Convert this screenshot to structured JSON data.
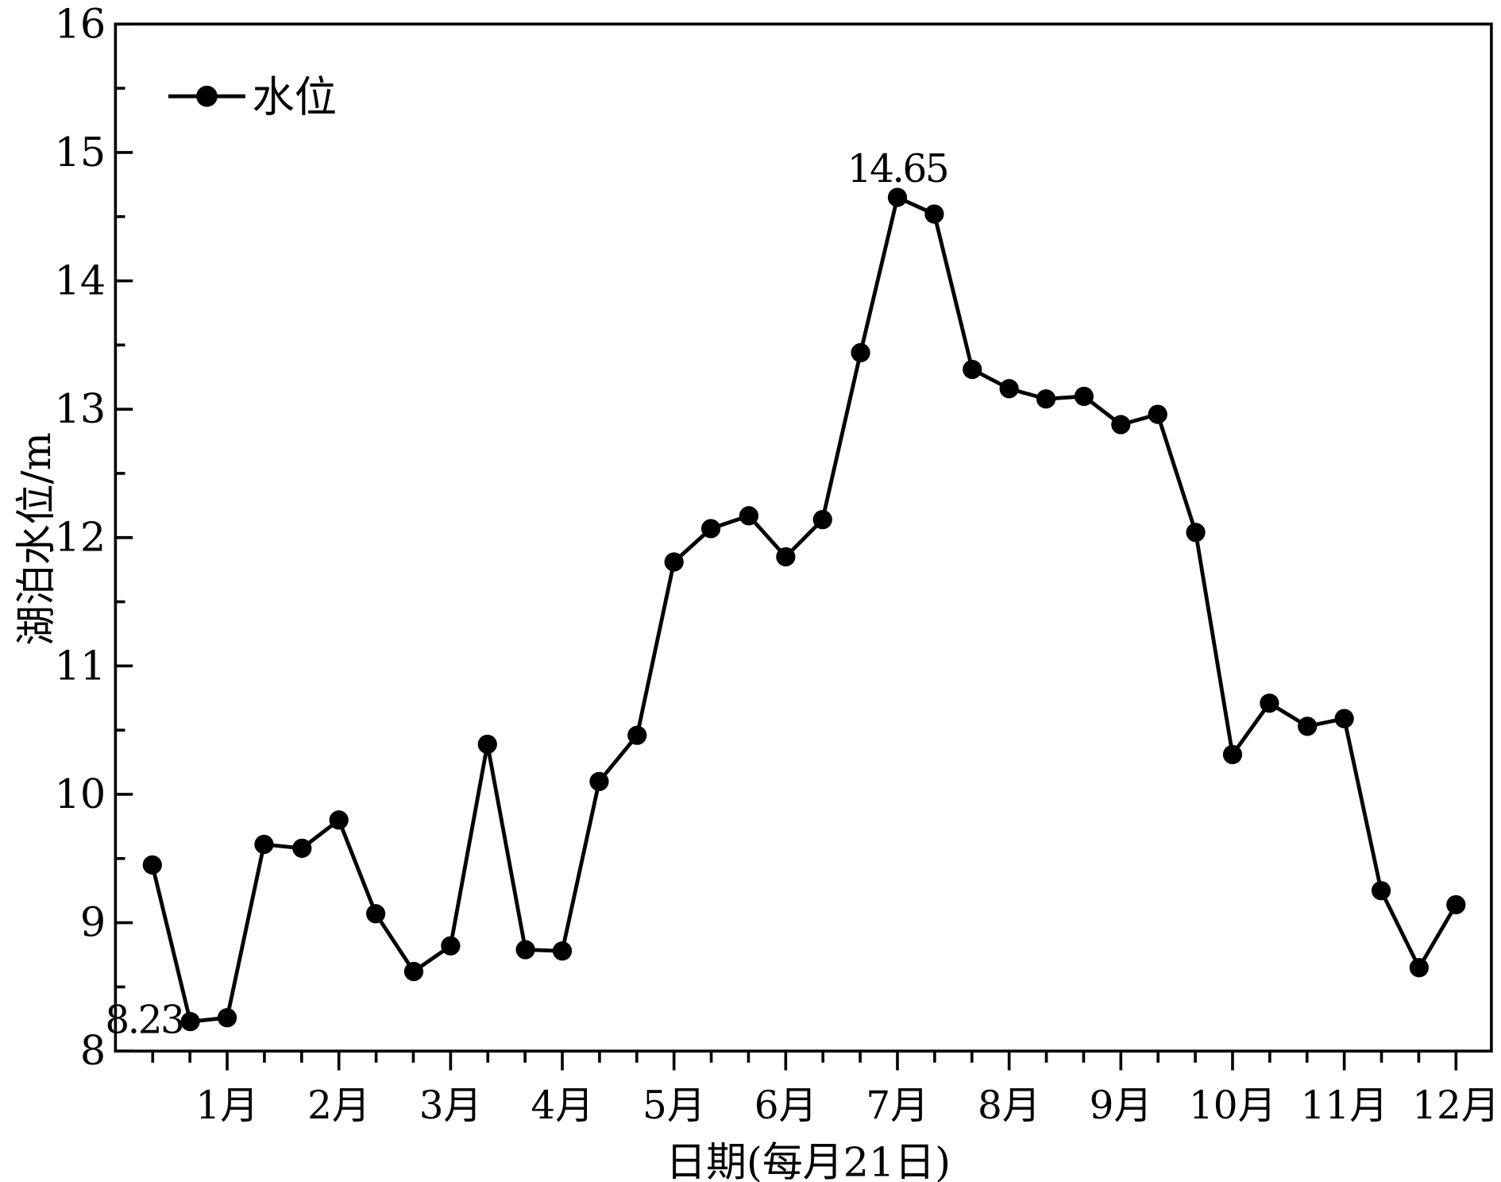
{
  "chart_data": {
    "type": "line",
    "title": "",
    "xlabel": "日期(每月21日)",
    "ylabel": "湖泊水位/m",
    "xlim": [
      0,
      12.3
    ],
    "ylim": [
      8,
      16
    ],
    "yticks": [
      8,
      9,
      10,
      11,
      12,
      13,
      14,
      15,
      16
    ],
    "xticks": [
      1,
      2,
      3,
      4,
      5,
      6,
      7,
      8,
      9,
      10,
      11,
      12
    ],
    "xtick_labels": [
      "1月",
      "2月",
      "3月",
      "4月",
      "5月",
      "6月",
      "7月",
      "8月",
      "9月",
      "10月",
      "11月",
      "12月"
    ],
    "grid": false,
    "legend_position": "top-left",
    "series": [
      {
        "name": "水位",
        "color": "#000000",
        "marker": "circle",
        "x": [
          0.33,
          0.67,
          1,
          1.33,
          1.67,
          2,
          2.33,
          2.67,
          3,
          3.33,
          3.67,
          4,
          4.33,
          4.67,
          5,
          5.33,
          5.67,
          6,
          6.33,
          6.67,
          7,
          7.33,
          7.67,
          8,
          8.33,
          8.67,
          9,
          9.33,
          9.67,
          10,
          10.33,
          10.67,
          11,
          11.33,
          11.67,
          12
        ],
        "values": [
          9.45,
          8.23,
          8.26,
          9.61,
          9.58,
          9.8,
          9.07,
          8.62,
          8.82,
          10.39,
          8.79,
          8.78,
          10.1,
          10.46,
          11.81,
          12.07,
          12.17,
          11.85,
          12.14,
          13.44,
          14.65,
          14.52,
          13.31,
          13.16,
          13.08,
          13.1,
          12.88,
          12.96,
          12.04,
          10.31,
          10.71,
          10.53,
          10.59,
          9.25,
          8.65,
          9.14
        ]
      }
    ],
    "annotations": [
      {
        "text": "14.65",
        "x": 7,
        "y": 14.65
      },
      {
        "text": "8.23",
        "x": 0.67,
        "y": 8.23
      }
    ]
  }
}
